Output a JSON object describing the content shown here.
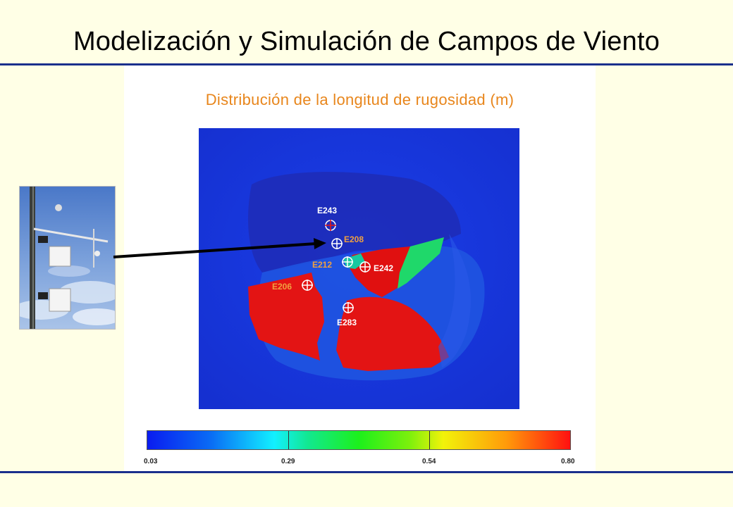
{
  "slide": {
    "title": "Modelización y Simulación de Campos de Viento"
  },
  "map": {
    "title": "Distribución de la longitud de rugosidad (m)",
    "stations": [
      {
        "label": "E243",
        "color": "#ffffff"
      },
      {
        "label": "E208",
        "color": "#f0a040"
      },
      {
        "label": "E212",
        "color": "#f0a040"
      },
      {
        "label": "E242",
        "color": "#ffffff"
      },
      {
        "label": "E206",
        "color": "#f0a040"
      },
      {
        "label": "E283",
        "color": "#ffffff"
      }
    ],
    "colorbar": {
      "ticks": [
        "0.03",
        "0.29",
        "0.54",
        "0.80"
      ],
      "colors": [
        "#0a1cf0",
        "#12f0ff",
        "#1cf01c",
        "#f2f20a",
        "#ff1010"
      ]
    }
  },
  "photo": {
    "subject": "weather-station-mast"
  },
  "colors": {
    "background": "#ffffe6",
    "rule": "#1a2f8c",
    "subtitle": "#e8861c"
  }
}
